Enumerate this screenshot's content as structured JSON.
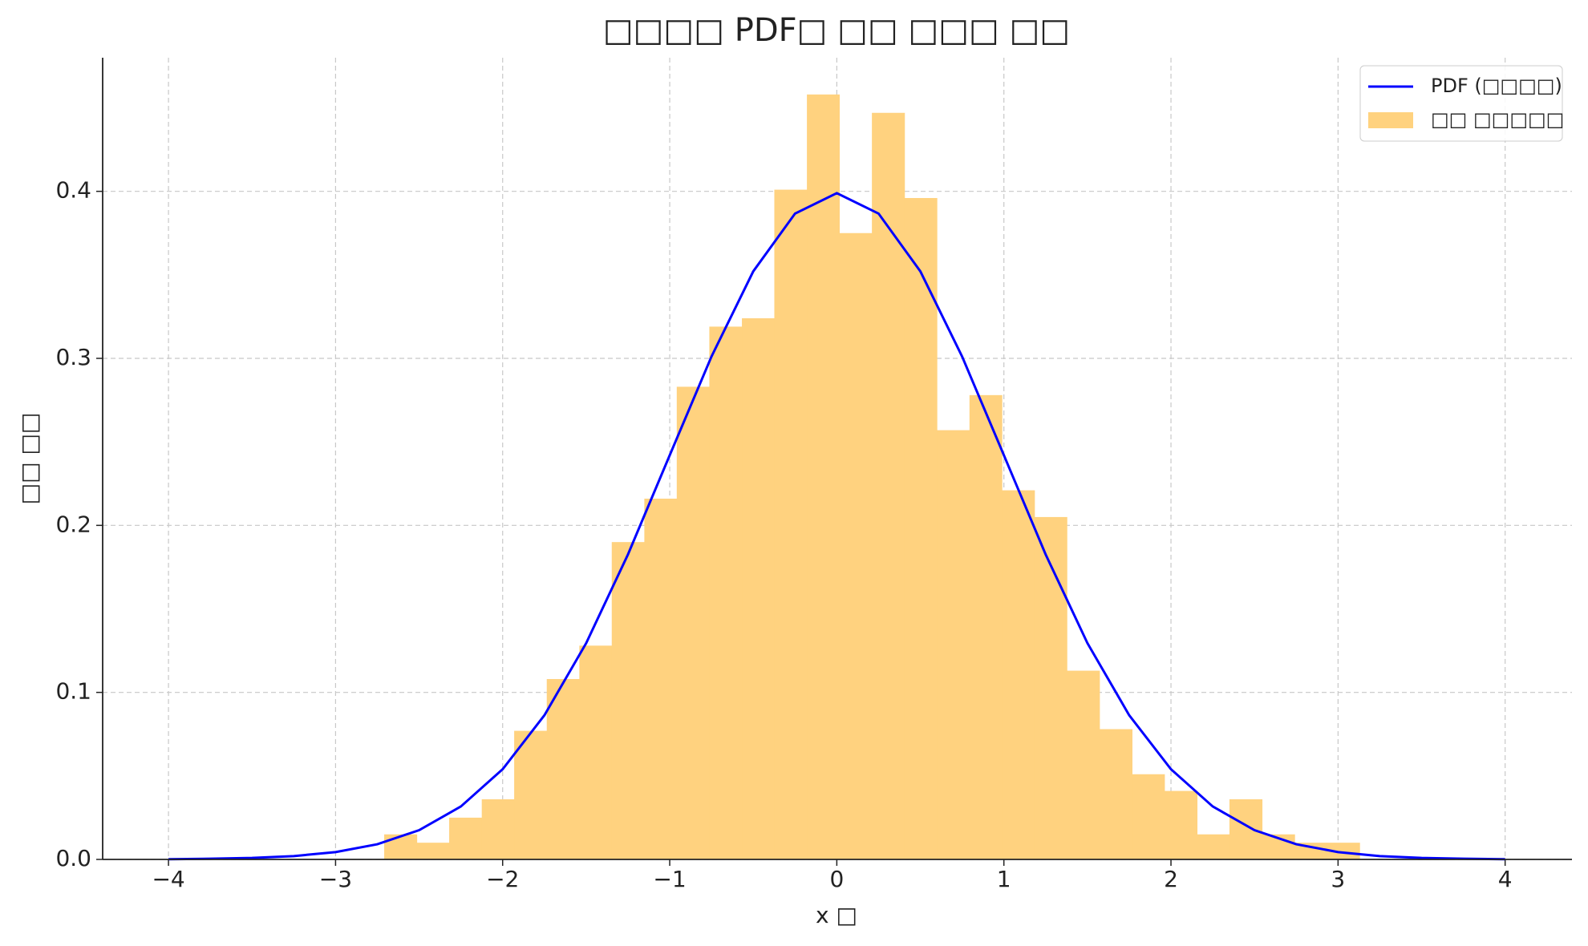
{
  "chart_data": {
    "type": "histogram",
    "title": "□□□□ PDF□ □□ □□□ □□",
    "xlabel": "x □",
    "ylabel": "□□ □□",
    "name": "□□ □□□□□",
    "color": "#ffd27f",
    "bins": [
      -2.709,
      -2.514,
      -2.32,
      -2.125,
      -1.931,
      -1.736,
      -1.541,
      -1.347,
      -1.152,
      -0.958,
      -0.763,
      -0.568,
      -0.374,
      -0.179,
      0.015,
      0.21,
      0.405,
      0.599,
      0.794,
      0.988,
      1.183,
      1.377,
      1.572,
      1.767,
      1.961,
      2.156,
      2.35,
      2.545,
      2.74,
      2.934,
      3.129
    ],
    "counts": [
      0.015,
      0.01,
      0.025,
      0.036,
      0.077,
      0.108,
      0.128,
      0.19,
      0.216,
      0.283,
      0.319,
      0.324,
      0.401,
      0.458,
      0.375,
      0.447,
      0.396,
      0.257,
      0.278,
      0.221,
      0.205,
      0.113,
      0.078,
      0.051,
      0.041,
      0.015,
      0.036,
      0.015,
      0.01,
      0.01
    ],
    "lines": [
      {
        "type": "line",
        "name": "PDF (□□□□)",
        "color": "#0000ff",
        "x": [
          -4,
          -3.75,
          -3.5,
          -3.25,
          -3,
          -2.75,
          -2.5,
          -2.25,
          -2,
          -1.75,
          -1.5,
          -1.25,
          -1,
          -0.75,
          -0.5,
          -0.25,
          0,
          0.25,
          0.5,
          0.75,
          1,
          1.25,
          1.5,
          1.75,
          2,
          2.25,
          2.5,
          2.75,
          3,
          3.25,
          3.5,
          3.75,
          4
        ],
        "values": [
          0.0001,
          0.0004,
          0.0009,
          0.002,
          0.0044,
          0.0091,
          0.0175,
          0.0317,
          0.054,
          0.0863,
          0.1295,
          0.1826,
          0.242,
          0.3011,
          0.3521,
          0.3867,
          0.3989,
          0.3867,
          0.3521,
          0.3011,
          0.242,
          0.1826,
          0.1295,
          0.0863,
          0.054,
          0.0317,
          0.0175,
          0.0091,
          0.0044,
          0.002,
          0.0009,
          0.0004,
          0.0001
        ]
      }
    ],
    "xlim": [
      -4.394,
      4.4
    ],
    "ylim": [
      0,
      0.48
    ],
    "xticks": [
      {
        "value": -4,
        "label": "−4"
      },
      {
        "value": -3,
        "label": "−3"
      },
      {
        "value": -2,
        "label": "−2"
      },
      {
        "value": -1,
        "label": "−1"
      },
      0,
      1,
      2,
      3,
      4
    ],
    "yticks": [
      {
        "value": 0,
        "label": "0.0"
      },
      0.1,
      0.2,
      0.3,
      0.4
    ],
    "grid": true,
    "legend": "upper right"
  }
}
